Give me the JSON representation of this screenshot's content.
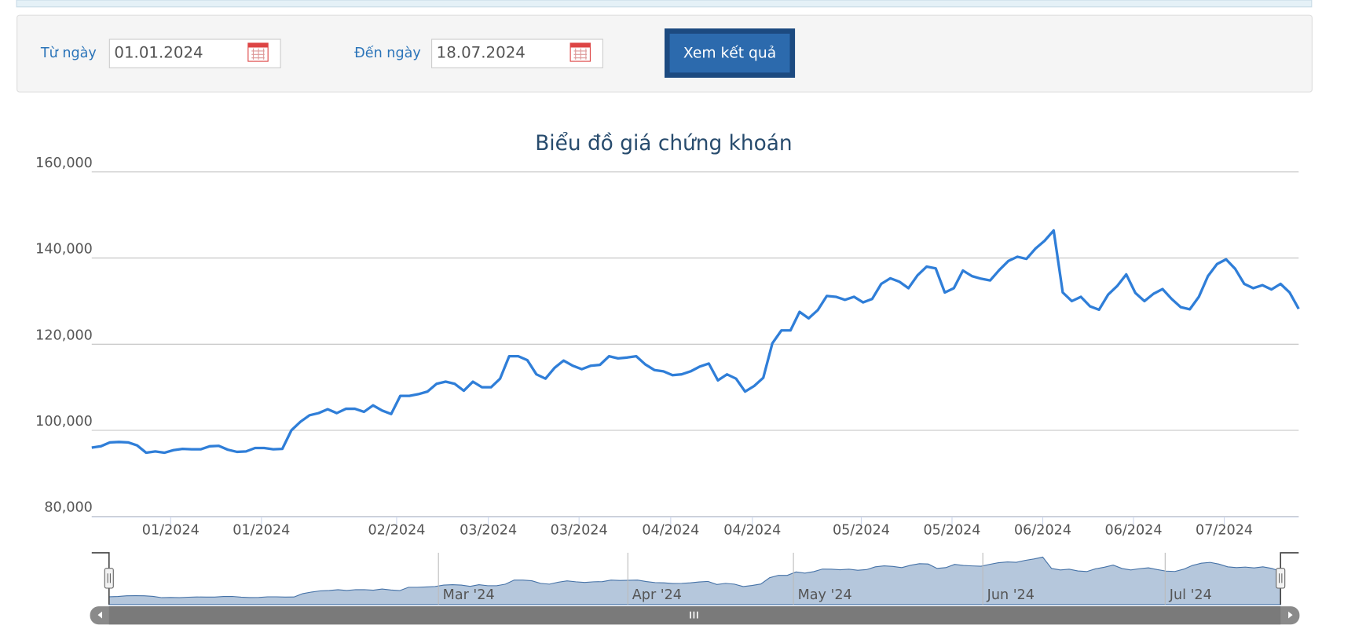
{
  "form": {
    "from_label": "Từ ngày",
    "from_value": "01.01.2024",
    "to_label": "Đến ngày",
    "to_value": "18.07.2024",
    "button": "Xem kết quả"
  },
  "chart_data": {
    "type": "line",
    "title": "Biểu đồ giá chứng khoán",
    "series": [
      {
        "color": "#2f7ed8",
        "values": [
          96000,
          96300,
          97200,
          97300,
          97200,
          96500,
          94800,
          95100,
          94800,
          95400,
          95700,
          95600,
          95600,
          96300,
          96400,
          95500,
          95000,
          95100,
          95900,
          95900,
          95600,
          95700,
          100000,
          102000,
          103500,
          104000,
          104900,
          104000,
          105000,
          105000,
          104300,
          105800,
          104600,
          103800,
          108000,
          108000,
          108400,
          109000,
          110800,
          111300,
          110800,
          109200,
          111300,
          110000,
          110000,
          112000,
          117200,
          117200,
          116300,
          113000,
          112000,
          114500,
          116200,
          115000,
          114200,
          115000,
          115200,
          117200,
          116700,
          116900,
          117200,
          115300,
          114000,
          113700,
          112800,
          113000,
          113700,
          114800,
          115500,
          111600,
          113000,
          112000,
          109000,
          110300,
          112200,
          120200,
          123200,
          123200,
          127500,
          126000,
          127900,
          131200,
          131000,
          130300,
          131000,
          129700,
          130500,
          134000,
          135300,
          134500,
          133000,
          136000,
          138000,
          137600,
          132000,
          133000,
          137100,
          135800,
          135200,
          134800,
          137200,
          139300,
          140300,
          139800,
          142200,
          144000,
          146400,
          132000,
          130000,
          131000,
          128800,
          128000,
          131500,
          133500,
          136200,
          131900,
          130000,
          131700,
          132800,
          130500,
          128600,
          128100,
          131000,
          135800,
          138600,
          139700,
          137500,
          134000,
          133000,
          133700,
          132700,
          134000,
          132000,
          128200
        ]
      }
    ],
    "ylim": [
      80000,
      160000
    ],
    "yticks": [
      {
        "value": 80000,
        "label": "80,000"
      },
      {
        "value": 100000,
        "label": "100,000"
      },
      {
        "value": 120000,
        "label": "120,000"
      },
      {
        "value": 140000,
        "label": "140,000"
      },
      {
        "value": 160000,
        "label": "160,000"
      }
    ],
    "xlim": [
      0,
      133
    ],
    "xticks": [
      {
        "value": 8.7,
        "label": "01/2024"
      },
      {
        "value": 18.7,
        "label": "01/2024"
      },
      {
        "value": 33.6,
        "label": "02/2024"
      },
      {
        "value": 43.7,
        "label": "03/2024"
      },
      {
        "value": 53.7,
        "label": "03/2024"
      },
      {
        "value": 63.8,
        "label": "04/2024"
      },
      {
        "value": 72.8,
        "label": "04/2024"
      },
      {
        "value": 84.8,
        "label": "05/2024"
      },
      {
        "value": 94.8,
        "label": "05/2024"
      },
      {
        "value": 104.8,
        "label": "06/2024"
      },
      {
        "value": 114.8,
        "label": "06/2024"
      },
      {
        "value": 124.8,
        "label": "07/2024"
      }
    ],
    "grid": true,
    "navigator": {
      "ticks": [
        {
          "value": 37.4,
          "label": "Mar '24"
        },
        {
          "value": 58.9,
          "label": "Apr '24"
        },
        {
          "value": 77.7,
          "label": "May '24"
        },
        {
          "value": 99.2,
          "label": "Jun '24"
        },
        {
          "value": 119.9,
          "label": "Jul '24"
        }
      ]
    }
  }
}
